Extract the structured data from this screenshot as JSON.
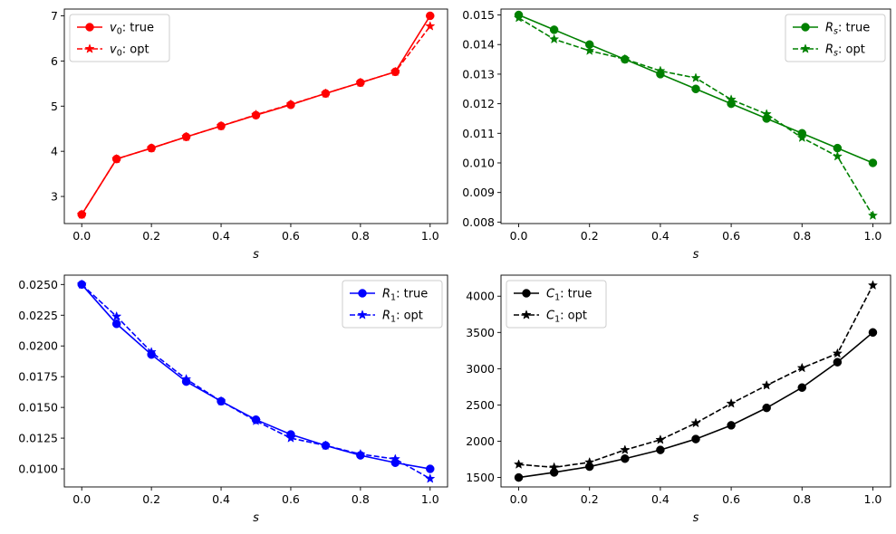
{
  "chart_data": [
    {
      "type": "line",
      "xlabel": "s",
      "x": [
        0.0,
        0.1,
        0.2,
        0.3,
        0.4,
        0.5,
        0.6,
        0.7,
        0.8,
        0.9,
        1.0
      ],
      "xlim": [
        -0.05,
        1.05
      ],
      "xticks": [
        0.0,
        0.2,
        0.4,
        0.6,
        0.8,
        1.0
      ],
      "xtick_labels": [
        "0.0",
        "0.2",
        "0.4",
        "0.6",
        "0.8",
        "1.0"
      ],
      "ylim": [
        2.4,
        7.15
      ],
      "yticks": [
        3,
        4,
        5,
        6,
        7
      ],
      "ytick_labels": [
        "3",
        "4",
        "5",
        "6",
        "7"
      ],
      "legend_position": "upper-left",
      "grid": false,
      "color": "#ff0000",
      "series": [
        {
          "name": "v_0: true",
          "sym": "v",
          "sub": "0",
          "suffix": ": true",
          "style": "solid",
          "marker": "circle",
          "values": [
            2.6,
            3.83,
            4.07,
            4.32,
            4.56,
            4.8,
            5.03,
            5.28,
            5.52,
            5.76,
            7.0
          ]
        },
        {
          "name": "v_0: opt",
          "sym": "v",
          "sub": "0",
          "suffix": ": opt",
          "style": "dashed",
          "marker": "star",
          "values": [
            2.6,
            3.83,
            4.07,
            4.32,
            4.56,
            4.81,
            5.04,
            5.28,
            5.52,
            5.76,
            6.77
          ]
        }
      ]
    },
    {
      "type": "line",
      "xlabel": "s",
      "x": [
        0.0,
        0.1,
        0.2,
        0.3,
        0.4,
        0.5,
        0.6,
        0.7,
        0.8,
        0.9,
        1.0
      ],
      "xlim": [
        -0.05,
        1.05
      ],
      "xticks": [
        0.0,
        0.2,
        0.4,
        0.6,
        0.8,
        1.0
      ],
      "xtick_labels": [
        "0.0",
        "0.2",
        "0.4",
        "0.6",
        "0.8",
        "1.0"
      ],
      "ylim": [
        0.00795,
        0.0152
      ],
      "yticks": [
        0.008,
        0.009,
        0.01,
        0.011,
        0.012,
        0.013,
        0.014,
        0.015
      ],
      "ytick_labels": [
        "0.008",
        "0.009",
        "0.010",
        "0.011",
        "0.012",
        "0.013",
        "0.014",
        "0.015"
      ],
      "legend_position": "upper-right",
      "grid": false,
      "color": "#008000",
      "series": [
        {
          "name": "R_s: true",
          "sym": "R",
          "sub": "s",
          "suffix": ": true",
          "style": "solid",
          "marker": "circle",
          "values": [
            0.015,
            0.0145,
            0.014,
            0.0135,
            0.013,
            0.0125,
            0.012,
            0.0115,
            0.011,
            0.0105,
            0.01
          ]
        },
        {
          "name": "R_s: opt",
          "sym": "R",
          "sub": "s",
          "suffix": ": opt",
          "style": "dashed",
          "marker": "star",
          "values": [
            0.0149,
            0.01418,
            0.01379,
            0.01351,
            0.01311,
            0.01287,
            0.01214,
            0.01165,
            0.01085,
            0.01022,
            0.00822
          ]
        }
      ]
    },
    {
      "type": "line",
      "xlabel": "s",
      "x": [
        0.0,
        0.1,
        0.2,
        0.3,
        0.4,
        0.5,
        0.6,
        0.7,
        0.8,
        0.9,
        1.0
      ],
      "xlim": [
        -0.05,
        1.05
      ],
      "xticks": [
        0.0,
        0.2,
        0.4,
        0.6,
        0.8,
        1.0
      ],
      "xtick_labels": [
        "0.0",
        "0.2",
        "0.4",
        "0.6",
        "0.8",
        "1.0"
      ],
      "ylim": [
        0.00853,
        0.02576
      ],
      "yticks": [
        0.01,
        0.0125,
        0.015,
        0.0175,
        0.02,
        0.0225,
        0.025
      ],
      "ytick_labels": [
        "0.0100",
        "0.0125",
        "0.0150",
        "0.0175",
        "0.0200",
        "0.0225",
        "0.0250"
      ],
      "legend_position": "upper-right",
      "grid": false,
      "color": "#0000ff",
      "series": [
        {
          "name": "R_1: true",
          "sym": "R",
          "sub": "1",
          "suffix": ": true",
          "style": "solid",
          "marker": "circle",
          "values": [
            0.025,
            0.0218,
            0.0193,
            0.0171,
            0.0155,
            0.014,
            0.0128,
            0.0119,
            0.0111,
            0.0105,
            0.01
          ]
        },
        {
          "name": "R_1: opt",
          "sym": "R",
          "sub": "1",
          "suffix": ": opt",
          "style": "dashed",
          "marker": "star",
          "values": [
            0.025,
            0.0224,
            0.0195,
            0.0173,
            0.0155,
            0.0139,
            0.0125,
            0.0119,
            0.0112,
            0.0108,
            0.0092
          ]
        }
      ]
    },
    {
      "type": "line",
      "xlabel": "s",
      "x": [
        0.0,
        0.1,
        0.2,
        0.3,
        0.4,
        0.5,
        0.6,
        0.7,
        0.8,
        0.9,
        1.0
      ],
      "xlim": [
        -0.05,
        1.05
      ],
      "xticks": [
        0.0,
        0.2,
        0.4,
        0.6,
        0.8,
        1.0
      ],
      "xtick_labels": [
        "0.0",
        "0.2",
        "0.4",
        "0.6",
        "0.8",
        "1.0"
      ],
      "ylim": [
        1370,
        4290
      ],
      "yticks": [
        1500,
        2000,
        2500,
        3000,
        3500,
        4000
      ],
      "ytick_labels": [
        "1500",
        "2000",
        "2500",
        "3000",
        "3500",
        "4000"
      ],
      "legend_position": "upper-left",
      "grid": false,
      "color": "#000000",
      "series": [
        {
          "name": "C_1: true",
          "sym": "C",
          "sub": "1",
          "suffix": ": true",
          "style": "solid",
          "marker": "circle",
          "values": [
            1500,
            1570,
            1650,
            1760,
            1880,
            2030,
            2220,
            2460,
            2740,
            3090,
            3500
          ]
        },
        {
          "name": "C_1: opt",
          "sym": "C",
          "sub": "1",
          "suffix": ": opt",
          "style": "dashed",
          "marker": "star",
          "values": [
            1680,
            1640,
            1710,
            1880,
            2020,
            2250,
            2520,
            2770,
            3010,
            3210,
            4150
          ]
        }
      ]
    }
  ]
}
